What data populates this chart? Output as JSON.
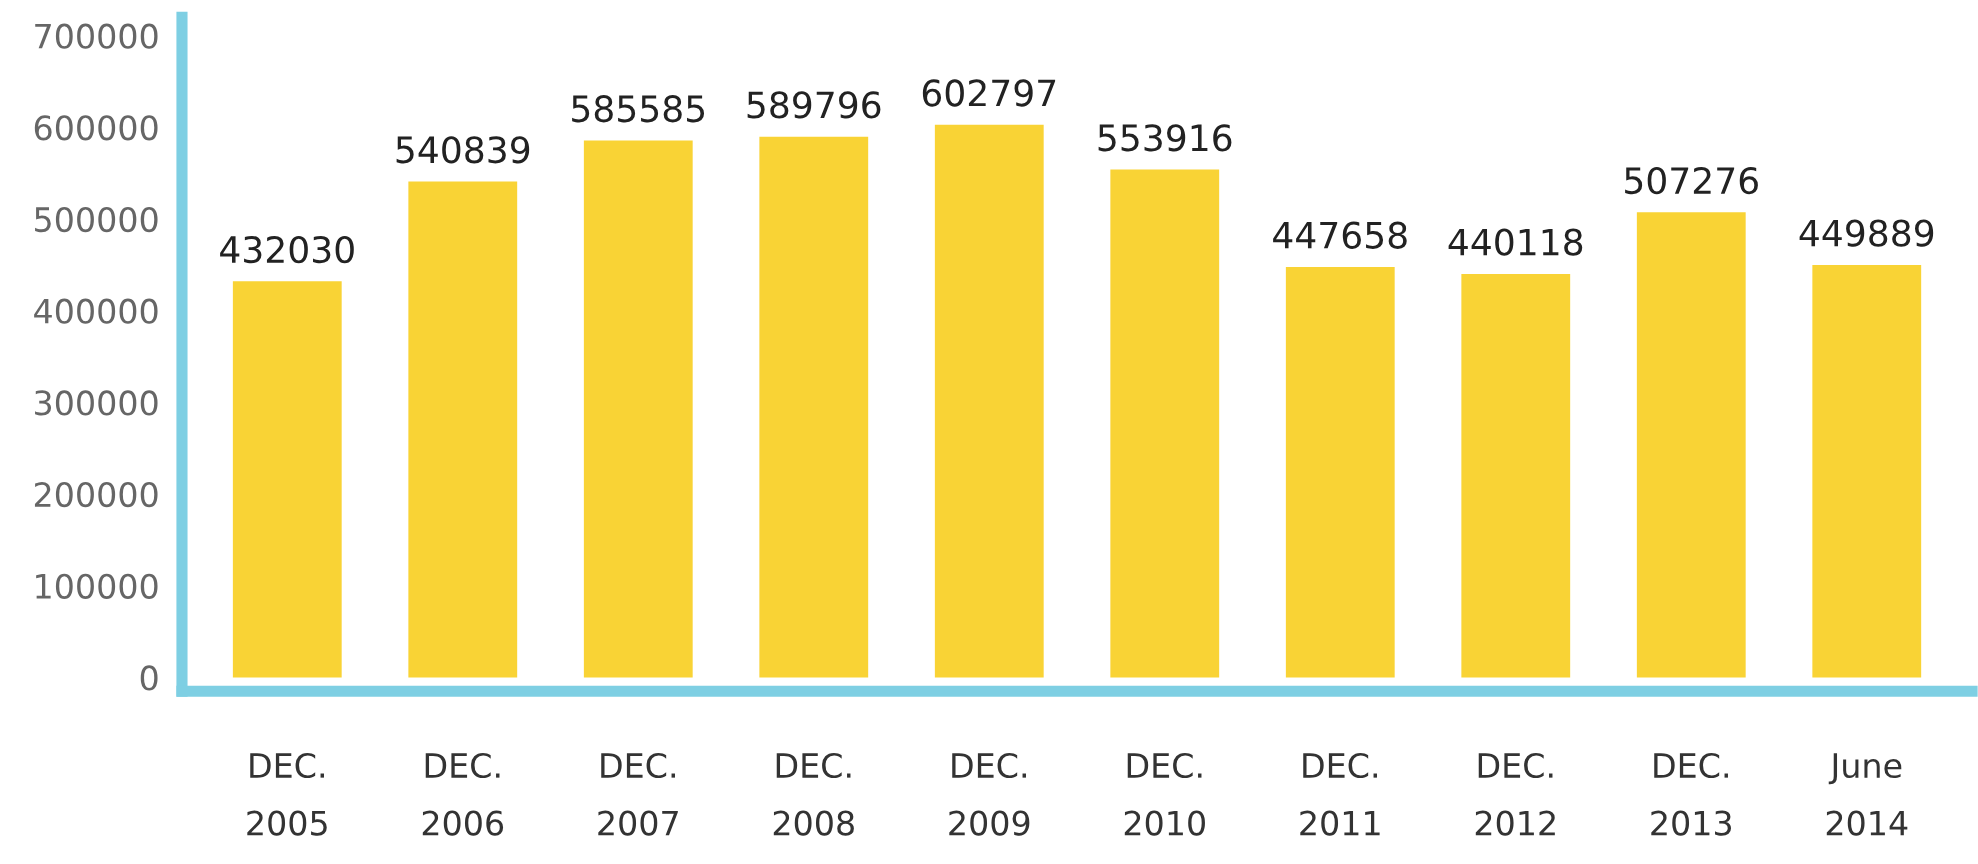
{
  "chart_data": {
    "type": "bar",
    "categories": [
      "DEC.\n2005",
      "DEC.\n2006",
      "DEC.\n2007",
      "DEC.\n2008",
      "DEC.\n2009",
      "DEC.\n2010",
      "DEC.\n2011",
      "DEC.\n2012",
      "DEC.\n2013",
      "June\n2014"
    ],
    "values": [
      432030,
      540839,
      585585,
      589796,
      602797,
      553916,
      447658,
      440118,
      507276,
      449889
    ],
    "color": "#f9d335",
    "ylim": [
      -15000,
      720000
    ],
    "yticks": [
      0,
      100000,
      200000,
      300000,
      400000,
      500000,
      600000,
      700000
    ],
    "data_labels": true,
    "grid": false,
    "legend": false
  }
}
